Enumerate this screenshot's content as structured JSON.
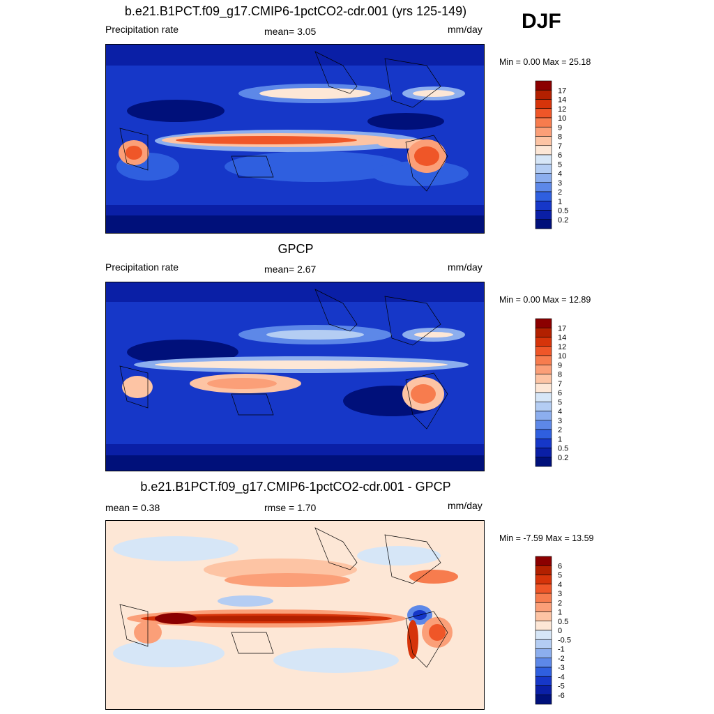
{
  "season": "DJF",
  "panels": [
    {
      "id": "model",
      "title": "b.e21.B1PCT.f09_g17.CMIP6-1pctCO2-cdr.001 (yrs 125-149)",
      "left_label": "Precipitation rate",
      "center_label": "mean=   3.05",
      "units": "mm/day",
      "minmax": "Min =   0.00 Max =  25.18"
    },
    {
      "id": "obs",
      "title": "GPCP",
      "left_label": "Precipitation rate",
      "center_label": "mean=   2.67",
      "units": "mm/day",
      "minmax": "Min =   0.00 Max =  12.89"
    },
    {
      "id": "diff",
      "title": "b.e21.B1PCT.f09_g17.CMIP6-1pctCO2-cdr.001 - GPCP",
      "left_label": "mean =   0.38",
      "center_label": "rmse =   1.70",
      "units": "mm/day",
      "minmax": "Min =  -7.59 Max =  13.59"
    }
  ],
  "colorbars": {
    "precip": {
      "labels": [
        "17",
        "14",
        "12",
        "10",
        "9",
        "8",
        "7",
        "6",
        "5",
        "4",
        "3",
        "2",
        "1",
        "0.5",
        "0.2"
      ],
      "colors": [
        "#8b0000",
        "#b22000",
        "#d6340a",
        "#ef5628",
        "#f77c4e",
        "#fb9f78",
        "#fdc4a4",
        "#fde7d6",
        "#d6e6f7",
        "#b4cdf3",
        "#8caeee",
        "#5d88e8",
        "#2f5fdf",
        "#1637c8",
        "#0a1fa6",
        "#00107a"
      ]
    },
    "diff": {
      "labels": [
        "6",
        "5",
        "4",
        "3",
        "2",
        "1",
        "0.5",
        "0",
        "-0.5",
        "-1",
        "-2",
        "-3",
        "-4",
        "-5",
        "-6"
      ],
      "colors": [
        "#8b0000",
        "#b22000",
        "#d6340a",
        "#ef5628",
        "#f77c4e",
        "#fb9f78",
        "#fdc4a4",
        "#fde7d6",
        "#d6e6f7",
        "#b4cdf3",
        "#8caeee",
        "#5d88e8",
        "#2f5fdf",
        "#1637c8",
        "#0a1fa6",
        "#00107a"
      ]
    }
  }
}
